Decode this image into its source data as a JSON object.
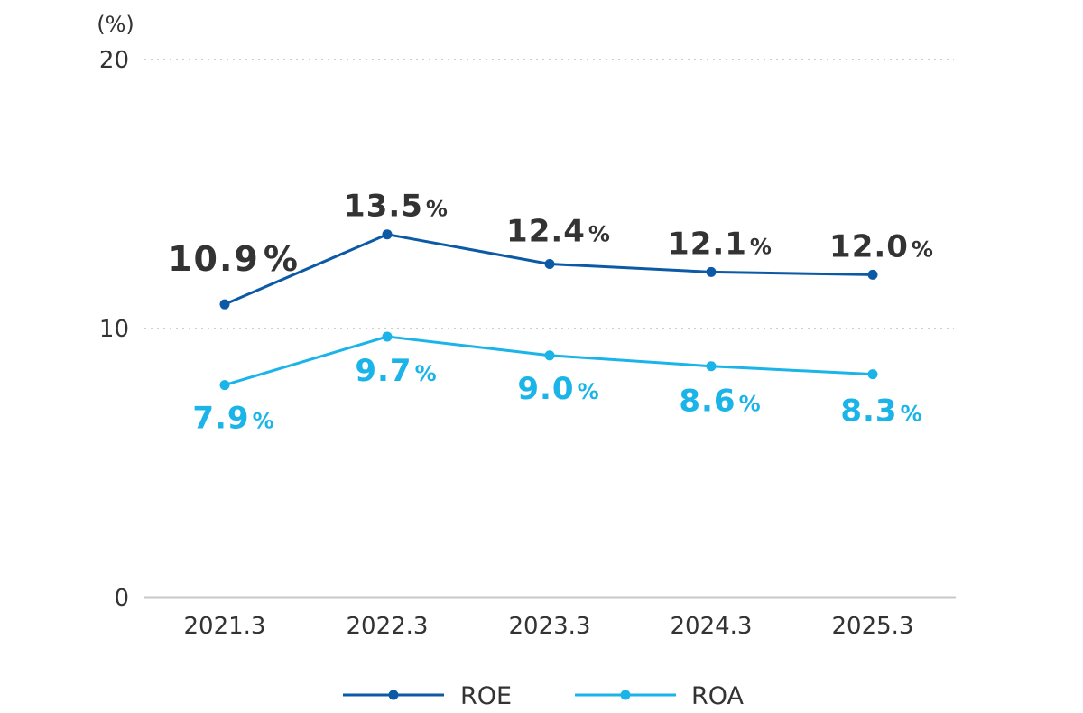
{
  "chart_data": {
    "type": "line",
    "title": "",
    "ylabel": "(%)",
    "xlabel": "",
    "categories": [
      "2021.3",
      "2022.3",
      "2023.3",
      "2024.3",
      "2025.3"
    ],
    "ylim": [
      0,
      20
    ],
    "yticks": [
      "0",
      "10",
      "20"
    ],
    "grid": true,
    "legend_position": "bottom",
    "series": [
      {
        "name": "ROE",
        "values": [
          10.9,
          13.5,
          12.4,
          12.1,
          12.0
        ],
        "labels": [
          "10.9",
          "13.5",
          "12.4",
          "12.1",
          "12.0"
        ],
        "label_suffix": "%",
        "color": "#0c5aa6",
        "label_color": "#333333"
      },
      {
        "name": "ROA",
        "values": [
          7.9,
          9.7,
          9.0,
          8.6,
          8.3
        ],
        "labels": [
          "7.9",
          "9.7",
          "9.0",
          "8.6",
          "8.3"
        ],
        "label_suffix": "%",
        "color": "#1ab4e8",
        "label_color": "#1ab4e8"
      }
    ]
  }
}
